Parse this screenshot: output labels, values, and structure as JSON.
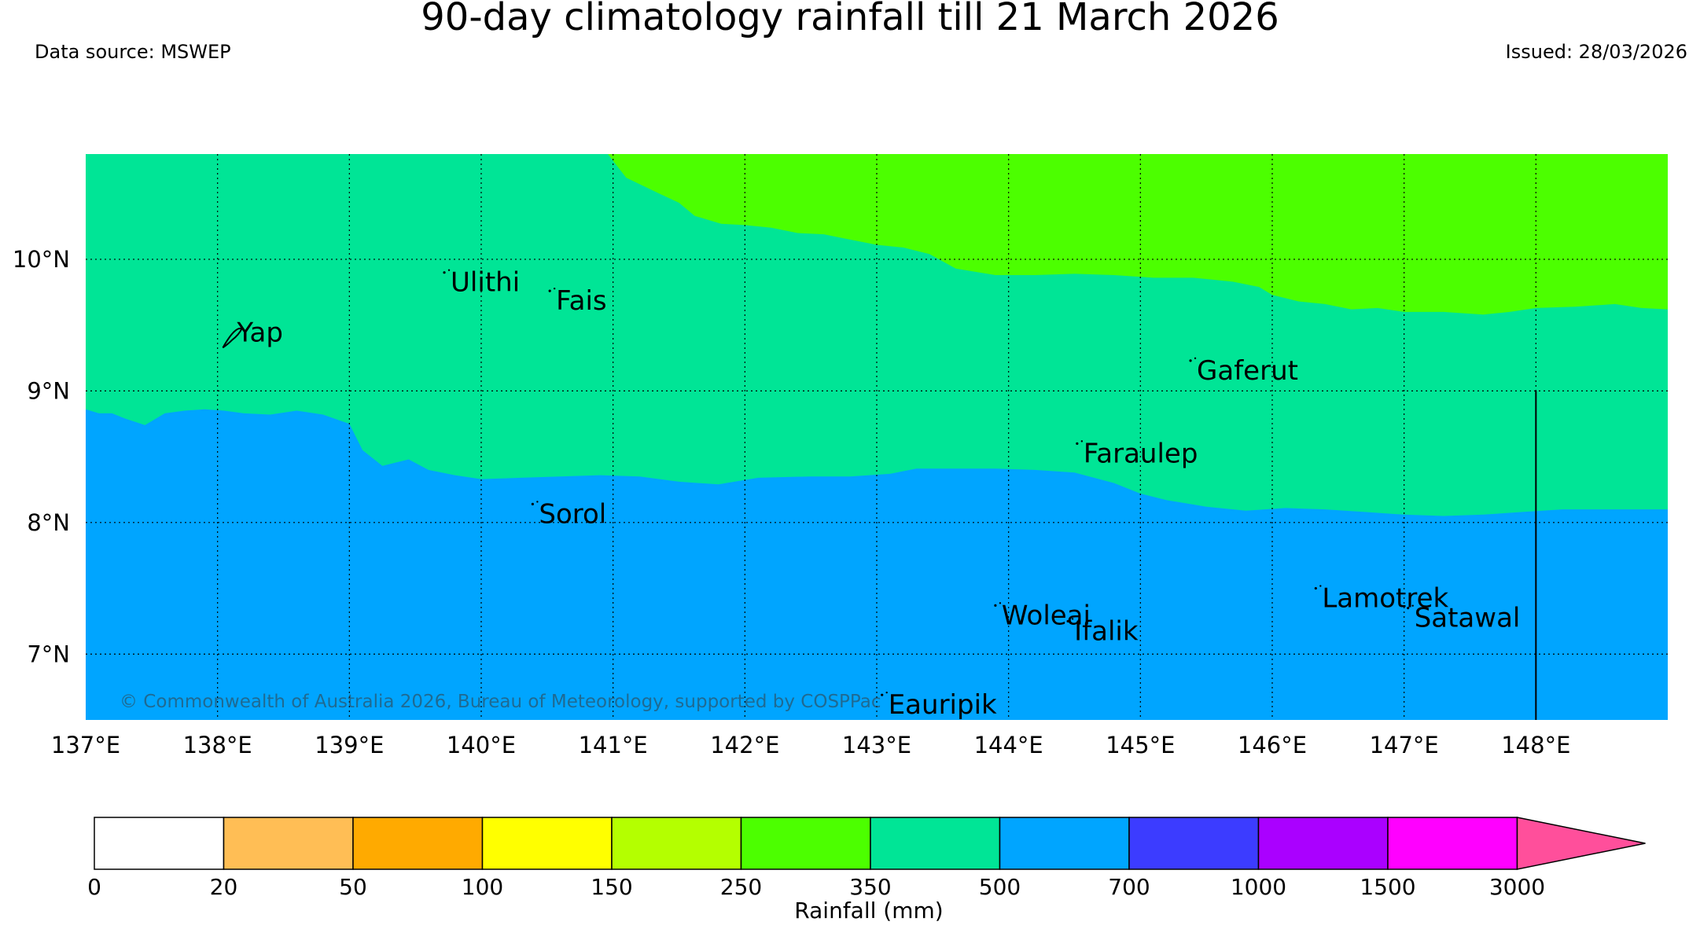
{
  "header": {
    "title": "90-day climatology rainfall till 21 March 2026",
    "source": "Data source: MSWEP",
    "issued": "Issued: 28/03/2026"
  },
  "map": {
    "lon_range": [
      137,
      149
    ],
    "lat_range": [
      6.5,
      10.8
    ],
    "lon_ticks": [
      {
        "value": 137,
        "label": "137°E"
      },
      {
        "value": 138,
        "label": "138°E"
      },
      {
        "value": 139,
        "label": "139°E"
      },
      {
        "value": 140,
        "label": "140°E"
      },
      {
        "value": 141,
        "label": "141°E"
      },
      {
        "value": 142,
        "label": "142°E"
      },
      {
        "value": 143,
        "label": "143°E"
      },
      {
        "value": 144,
        "label": "144°E"
      },
      {
        "value": 145,
        "label": "145°E"
      },
      {
        "value": 146,
        "label": "146°E"
      },
      {
        "value": 147,
        "label": "147°E"
      },
      {
        "value": 148,
        "label": "148°E"
      }
    ],
    "lat_ticks": [
      {
        "value": 10,
        "label": "10°N"
      },
      {
        "value": 9,
        "label": "9°N"
      },
      {
        "value": 8,
        "label": "8°N"
      },
      {
        "value": 7,
        "label": "7°N"
      }
    ],
    "places": [
      {
        "name": "Yap",
        "lon": 138.1,
        "lat": 9.52
      },
      {
        "name": "Ulithi",
        "lon": 139.72,
        "lat": 9.9
      },
      {
        "name": "Fais",
        "lon": 140.52,
        "lat": 9.76
      },
      {
        "name": "Gaferut",
        "lon": 145.38,
        "lat": 9.23
      },
      {
        "name": "Faraulep",
        "lon": 144.52,
        "lat": 8.6
      },
      {
        "name": "Sorol",
        "lon": 140.39,
        "lat": 8.14
      },
      {
        "name": "Woleai",
        "lon": 143.9,
        "lat": 7.37
      },
      {
        "name": "Ifalik",
        "lon": 144.45,
        "lat": 7.25
      },
      {
        "name": "Lamotrek",
        "lon": 146.33,
        "lat": 7.5
      },
      {
        "name": "Satawal",
        "lon": 147.03,
        "lat": 7.35
      },
      {
        "name": "Eauripik",
        "lon": 143.04,
        "lat": 6.69
      }
    ],
    "colors": {
      "band_250_350": "#4cff00",
      "band_350_500": "#00e596",
      "band_500_700": "#00a5ff"
    },
    "boundary_upper": [
      [
        140.96,
        10.8
      ],
      [
        141.1,
        10.62
      ],
      [
        141.35,
        10.5
      ],
      [
        141.5,
        10.43
      ],
      [
        141.62,
        10.33
      ],
      [
        141.82,
        10.27
      ],
      [
        142.0,
        10.26
      ],
      [
        142.2,
        10.24
      ],
      [
        142.4,
        10.2
      ],
      [
        142.6,
        10.19
      ],
      [
        142.75,
        10.16
      ],
      [
        143.0,
        10.11
      ],
      [
        143.2,
        10.09
      ],
      [
        143.4,
        10.04
      ],
      [
        143.6,
        9.93
      ],
      [
        143.9,
        9.88
      ],
      [
        144.2,
        9.88
      ],
      [
        144.5,
        9.89
      ],
      [
        144.8,
        9.88
      ],
      [
        145.1,
        9.86
      ],
      [
        145.4,
        9.86
      ],
      [
        145.7,
        9.83
      ],
      [
        145.9,
        9.79
      ],
      [
        146.0,
        9.73
      ],
      [
        146.2,
        9.68
      ],
      [
        146.4,
        9.66
      ],
      [
        146.6,
        9.62
      ],
      [
        146.8,
        9.63
      ],
      [
        147.0,
        9.6
      ],
      [
        147.3,
        9.6
      ],
      [
        147.6,
        9.58
      ],
      [
        147.8,
        9.6
      ],
      [
        148.0,
        9.63
      ],
      [
        148.3,
        9.64
      ],
      [
        148.6,
        9.66
      ],
      [
        148.8,
        9.63
      ],
      [
        149.0,
        9.62
      ]
    ],
    "boundary_lower": [
      [
        137.0,
        8.86
      ],
      [
        137.1,
        8.83
      ],
      [
        137.2,
        8.83
      ],
      [
        137.3,
        8.79
      ],
      [
        137.45,
        8.74
      ],
      [
        137.6,
        8.83
      ],
      [
        137.75,
        8.85
      ],
      [
        137.9,
        8.86
      ],
      [
        138.05,
        8.85
      ],
      [
        138.2,
        8.83
      ],
      [
        138.4,
        8.82
      ],
      [
        138.6,
        8.85
      ],
      [
        138.8,
        8.82
      ],
      [
        139.0,
        8.75
      ],
      [
        139.1,
        8.55
      ],
      [
        139.25,
        8.43
      ],
      [
        139.45,
        8.48
      ],
      [
        139.6,
        8.4
      ],
      [
        139.8,
        8.36
      ],
      [
        140.0,
        8.33
      ],
      [
        140.3,
        8.34
      ],
      [
        140.6,
        8.35
      ],
      [
        140.9,
        8.36
      ],
      [
        141.2,
        8.35
      ],
      [
        141.5,
        8.31
      ],
      [
        141.8,
        8.29
      ],
      [
        142.1,
        8.34
      ],
      [
        142.5,
        8.35
      ],
      [
        142.8,
        8.35
      ],
      [
        143.1,
        8.37
      ],
      [
        143.3,
        8.41
      ],
      [
        143.6,
        8.41
      ],
      [
        143.9,
        8.41
      ],
      [
        144.2,
        8.4
      ],
      [
        144.5,
        8.38
      ],
      [
        144.8,
        8.3
      ],
      [
        145.0,
        8.22
      ],
      [
        145.2,
        8.17
      ],
      [
        145.5,
        8.12
      ],
      [
        145.8,
        8.09
      ],
      [
        146.1,
        8.11
      ],
      [
        146.4,
        8.1
      ],
      [
        146.7,
        8.08
      ],
      [
        147.0,
        8.06
      ],
      [
        147.3,
        8.05
      ],
      [
        147.6,
        8.06
      ],
      [
        147.9,
        8.08
      ],
      [
        148.2,
        8.1
      ],
      [
        148.5,
        8.1
      ],
      [
        148.8,
        8.1
      ],
      [
        149.0,
        8.1
      ]
    ],
    "copyright": "© Commonwealth of Australia 2026, Bureau of Meteorology, supported by COSPPac"
  },
  "colorbar": {
    "label": "Rainfall (mm)",
    "bins": [
      {
        "color": "#ffffff"
      },
      {
        "color": "#ffbe55"
      },
      {
        "color": "#ffaa00"
      },
      {
        "color": "#ffff00"
      },
      {
        "color": "#b4ff00"
      },
      {
        "color": "#4cff00"
      },
      {
        "color": "#00e596"
      },
      {
        "color": "#00a5ff"
      },
      {
        "color": "#3c3cff"
      },
      {
        "color": "#aa00ff"
      },
      {
        "color": "#ff00ff"
      }
    ],
    "extend_color": "#ff4f9b",
    "ticks": [
      "0",
      "20",
      "50",
      "100",
      "150",
      "250",
      "350",
      "500",
      "700",
      "1000",
      "1500",
      "3000"
    ]
  }
}
